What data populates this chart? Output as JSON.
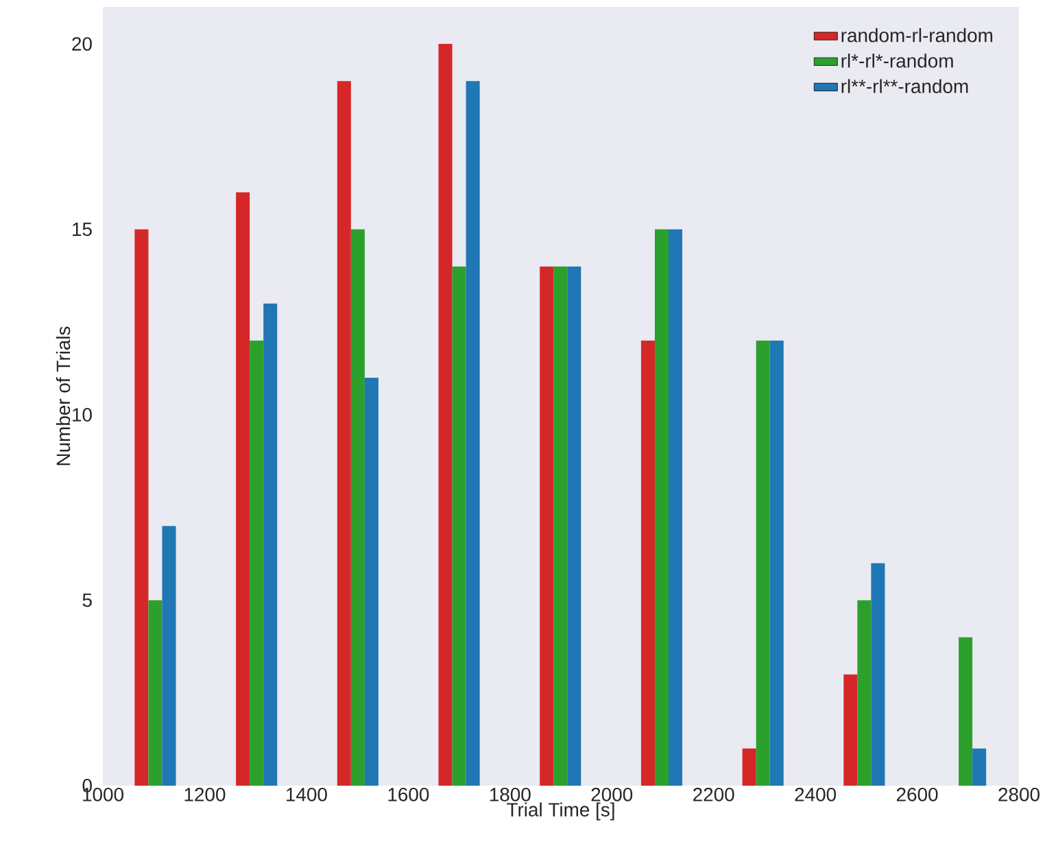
{
  "chart_data": {
    "type": "bar",
    "xlabel": "Trial Time [s]",
    "ylabel": "Number of Trials",
    "xlim": [
      1000,
      2800
    ],
    "ylim": [
      0,
      21
    ],
    "xticks": [
      1000,
      1200,
      1400,
      1600,
      1800,
      2000,
      2200,
      2400,
      2600,
      2800
    ],
    "yticks": [
      0,
      5,
      10,
      15,
      20
    ],
    "legend": "top right",
    "series": [
      {
        "name": "random-rl-random",
        "color": "#d62728",
        "x": [
          1076,
          1275,
          1474,
          1673,
          1872,
          2071,
          2270,
          2469,
          2668
        ],
        "values": [
          15,
          16,
          19,
          20,
          14,
          12,
          1,
          3,
          0
        ]
      },
      {
        "name": "rl*-rl*-random",
        "color": "#2ca02c",
        "x": [
          1103,
          1302,
          1501,
          1700,
          1899,
          2098,
          2297,
          2496,
          2695
        ],
        "values": [
          5,
          12,
          15,
          14,
          14,
          15,
          12,
          5,
          4
        ]
      },
      {
        "name": "rl**-rl**-random",
        "color": "#1f77b4",
        "x": [
          1130,
          1329,
          1528,
          1727,
          1926,
          2125,
          2324,
          2523,
          2722
        ],
        "values": [
          7,
          13,
          11,
          19,
          14,
          15,
          12,
          6,
          1
        ]
      }
    ]
  }
}
